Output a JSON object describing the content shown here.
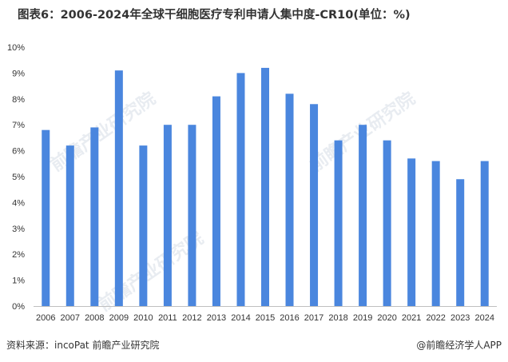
{
  "title": "图表6：2006-2024年全球干细胞医疗专利申请人集中度-CR10(单位：%)",
  "watermark": "前瞻产业研究院",
  "footer": {
    "source": "资料来源：incoPat 前瞻产业研究院",
    "brand": "@前瞻经济学人APP"
  },
  "colors": {
    "bar": "#4a86de",
    "axis": "#bfbfbf"
  },
  "chart_data": {
    "type": "bar",
    "title": "图表6：2006-2024年全球干细胞医疗专利申请人集中度-CR10(单位：%)",
    "xlabel": "",
    "ylabel": "",
    "ylim": [
      0,
      10
    ],
    "yticks": [
      "0%",
      "1%",
      "2%",
      "3%",
      "4%",
      "5%",
      "6%",
      "7%",
      "8%",
      "9%",
      "10%"
    ],
    "grid": false,
    "legend": "none",
    "categories": [
      "2006",
      "2007",
      "2008",
      "2009",
      "2010",
      "2011",
      "2012",
      "2013",
      "2014",
      "2015",
      "2016",
      "2017",
      "2018",
      "2019",
      "2020",
      "2021",
      "2022",
      "2023",
      "2024"
    ],
    "values": [
      6.8,
      6.2,
      6.9,
      9.1,
      6.2,
      7.0,
      7.0,
      8.1,
      9.0,
      9.2,
      8.2,
      7.8,
      6.4,
      7.0,
      6.4,
      5.7,
      5.6,
      4.9,
      5.6
    ]
  }
}
